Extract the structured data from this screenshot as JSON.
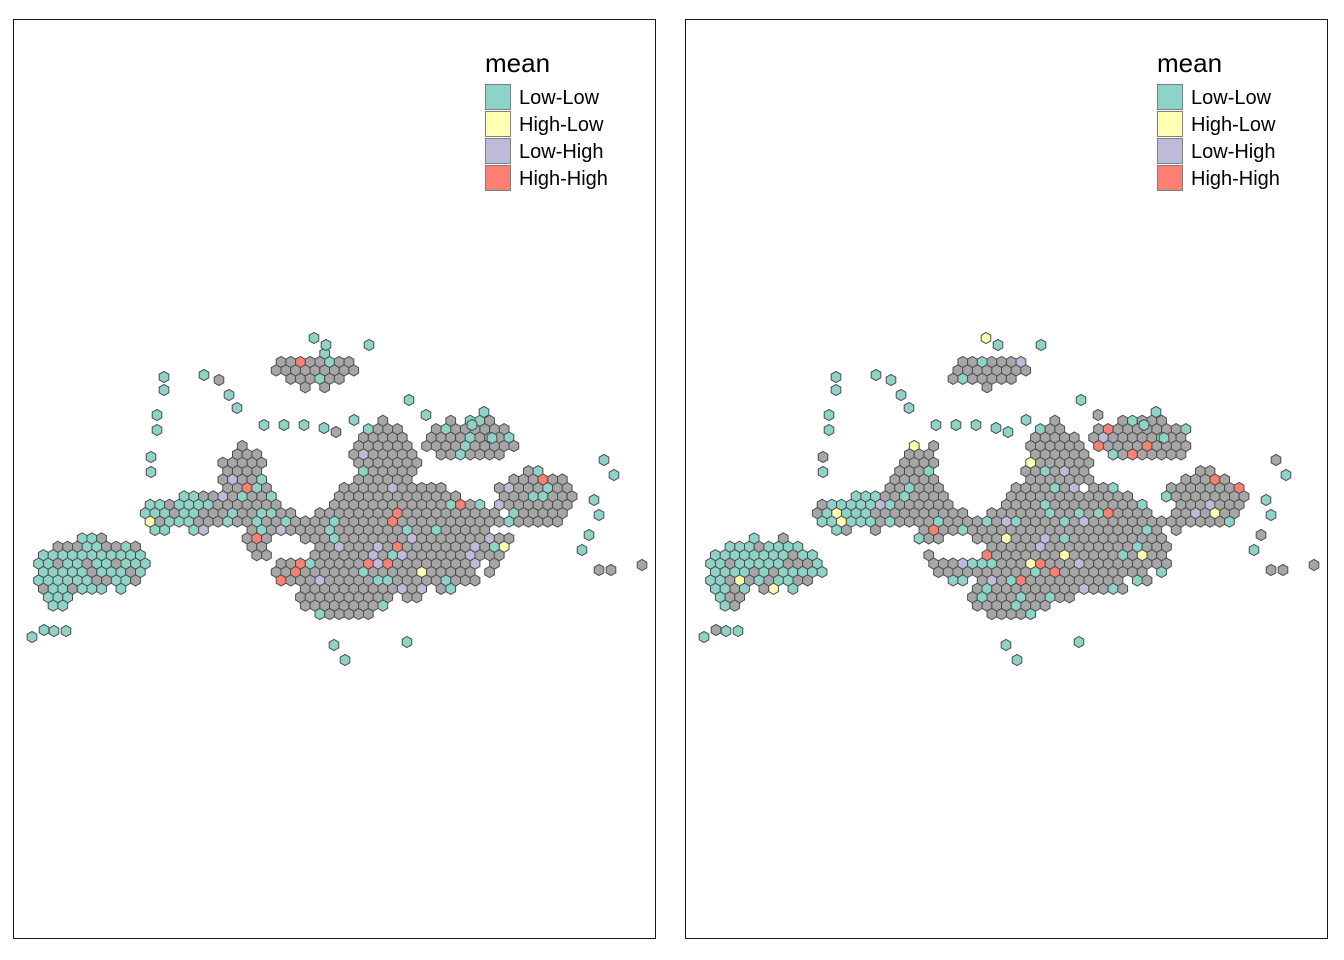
{
  "colors": {
    "Low-Low": "#8dd3c7",
    "High-Low": "#ffffb3",
    "Low-High": "#bebada",
    "High-High": "#fb8072",
    "not_significant": "#a6a6a6",
    "outline": "#4d4d4d"
  },
  "panels": [
    {
      "legend": {
        "title": "mean",
        "items": [
          {
            "label": "Low-Low",
            "color": "#8dd3c7"
          },
          {
            "label": "High-Low",
            "color": "#ffffb3"
          },
          {
            "label": "Low-High",
            "color": "#bebada"
          },
          {
            "label": "High-High",
            "color": "#fb8072"
          }
        ]
      }
    },
    {
      "legend": {
        "title": "mean",
        "items": [
          {
            "label": "Low-Low",
            "color": "#8dd3c7"
          },
          {
            "label": "High-Low",
            "color": "#ffffb3"
          },
          {
            "label": "Low-High",
            "color": "#bebada"
          },
          {
            "label": "High-High",
            "color": "#fb8072"
          }
        ]
      }
    }
  ]
}
